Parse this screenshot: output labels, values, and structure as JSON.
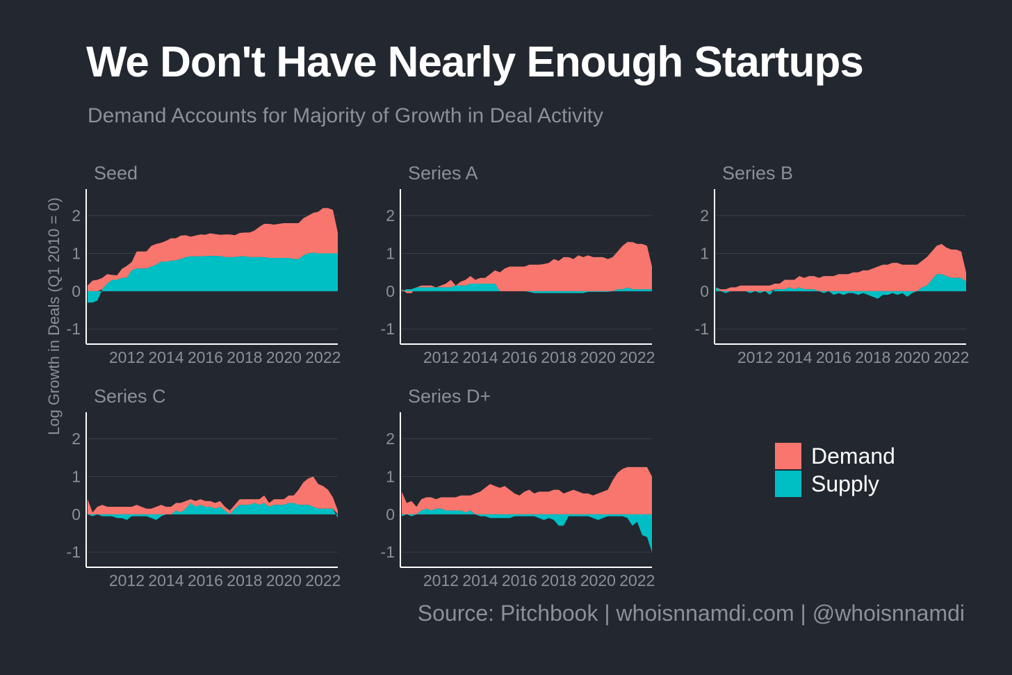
{
  "title": "We Don't Have Nearly Enough Startups",
  "subtitle": "Demand Accounts for Majority of Growth in Deal Activity",
  "y_axis_label": "Log Growth in Deals (Q1 2010 = 0)",
  "source": "Source: Pitchbook | whoisnnamdi.com | @whoisnnamdi",
  "colors": {
    "background": "#23272f",
    "demand": "#f8766d",
    "supply": "#00bfc4",
    "grid": "#3b3f47",
    "axis": "#ffffff",
    "muted": "#8c9097"
  },
  "legend": [
    {
      "name": "Demand",
      "color": "#f8766d"
    },
    {
      "name": "Supply",
      "color": "#00bfc4"
    }
  ],
  "chart_data": [
    {
      "type": "area",
      "title": "Seed",
      "x_ticks": [
        "2012",
        "2014",
        "2016",
        "2018",
        "2020",
        "2022"
      ],
      "y_ticks": [
        "2",
        "1",
        "0",
        "-1"
      ],
      "xlim": [
        2010,
        2022.75
      ],
      "ylim": [
        -1.4,
        2.7
      ],
      "x": [
        2010.0,
        2010.25,
        2010.5,
        2010.75,
        2011.0,
        2011.25,
        2011.5,
        2011.75,
        2012.0,
        2012.25,
        2012.5,
        2012.75,
        2013.0,
        2013.25,
        2013.5,
        2013.75,
        2014.0,
        2014.25,
        2014.5,
        2014.75,
        2015.0,
        2015.25,
        2015.5,
        2015.75,
        2016.0,
        2016.25,
        2016.5,
        2016.75,
        2017.0,
        2017.25,
        2017.5,
        2017.75,
        2018.0,
        2018.25,
        2018.5,
        2018.75,
        2019.0,
        2019.25,
        2019.5,
        2019.75,
        2020.0,
        2020.25,
        2020.5,
        2020.75,
        2021.0,
        2021.25,
        2021.5,
        2021.75,
        2022.0,
        2022.25,
        2022.5,
        2022.75
      ],
      "series": [
        {
          "name": "Demand",
          "values": [
            0.15,
            0.28,
            0.3,
            0.3,
            0.25,
            0.13,
            0.12,
            0.24,
            0.32,
            0.22,
            0.45,
            0.45,
            0.45,
            0.55,
            0.55,
            0.5,
            0.55,
            0.6,
            0.58,
            0.62,
            0.58,
            0.52,
            0.55,
            0.58,
            0.56,
            0.6,
            0.58,
            0.56,
            0.6,
            0.6,
            0.58,
            0.62,
            0.63,
            0.65,
            0.7,
            0.8,
            0.88,
            0.9,
            0.88,
            0.9,
            0.92,
            0.92,
            0.95,
            0.95,
            0.98,
            1.0,
            1.05,
            1.1,
            1.2,
            1.2,
            1.15,
            0.55
          ]
        },
        {
          "name": "Supply",
          "values": [
            -0.3,
            -0.3,
            -0.25,
            0.05,
            0.2,
            0.3,
            0.3,
            0.35,
            0.35,
            0.55,
            0.6,
            0.6,
            0.6,
            0.65,
            0.7,
            0.78,
            0.78,
            0.8,
            0.82,
            0.85,
            0.9,
            0.92,
            0.92,
            0.92,
            0.93,
            0.93,
            0.93,
            0.93,
            0.9,
            0.9,
            0.9,
            0.92,
            0.92,
            0.9,
            0.9,
            0.9,
            0.9,
            0.88,
            0.88,
            0.88,
            0.88,
            0.88,
            0.85,
            0.85,
            0.95,
            1.0,
            1.02,
            1.0,
            1.0,
            1.0,
            1.0,
            1.0
          ]
        }
      ]
    },
    {
      "type": "area",
      "title": "Series A",
      "x_ticks": [
        "2012",
        "2014",
        "2016",
        "2018",
        "2020",
        "2022"
      ],
      "y_ticks": [
        "2",
        "1",
        "0",
        "-1"
      ],
      "xlim": [
        2010,
        2022.75
      ],
      "ylim": [
        -1.4,
        2.7
      ],
      "x": [
        2010.0,
        2010.25,
        2010.5,
        2010.75,
        2011.0,
        2011.25,
        2011.5,
        2011.75,
        2012.0,
        2012.25,
        2012.5,
        2012.75,
        2013.0,
        2013.25,
        2013.5,
        2013.75,
        2014.0,
        2014.25,
        2014.5,
        2014.75,
        2015.0,
        2015.25,
        2015.5,
        2015.75,
        2016.0,
        2016.25,
        2016.5,
        2016.75,
        2017.0,
        2017.25,
        2017.5,
        2017.75,
        2018.0,
        2018.25,
        2018.5,
        2018.75,
        2019.0,
        2019.25,
        2019.5,
        2019.75,
        2020.0,
        2020.25,
        2020.5,
        2020.75,
        2021.0,
        2021.25,
        2021.5,
        2021.75,
        2022.0,
        2022.25,
        2022.5,
        2022.75
      ],
      "series": [
        {
          "name": "Demand",
          "values": [
            0.05,
            -0.1,
            -0.1,
            0.0,
            0.05,
            0.05,
            0.05,
            0.0,
            0.05,
            0.1,
            0.2,
            0.0,
            0.1,
            0.15,
            0.2,
            0.1,
            0.15,
            0.15,
            0.25,
            0.35,
            0.5,
            0.6,
            0.65,
            0.65,
            0.65,
            0.65,
            0.7,
            0.7,
            0.7,
            0.72,
            0.75,
            0.85,
            0.8,
            0.9,
            0.9,
            0.85,
            0.95,
            0.9,
            0.95,
            0.9,
            0.9,
            0.9,
            0.85,
            0.9,
            1.0,
            1.15,
            1.2,
            1.25,
            1.2,
            1.2,
            1.15,
            0.6
          ]
        },
        {
          "name": "Supply",
          "values": [
            0.0,
            0.05,
            0.05,
            0.1,
            0.1,
            0.1,
            0.1,
            0.1,
            0.1,
            0.1,
            0.1,
            0.15,
            0.15,
            0.15,
            0.2,
            0.2,
            0.2,
            0.2,
            0.2,
            0.2,
            0.0,
            0.0,
            0.0,
            0.0,
            0.0,
            0.0,
            -0.02,
            -0.05,
            -0.05,
            -0.05,
            -0.05,
            -0.05,
            -0.05,
            -0.05,
            -0.05,
            -0.05,
            -0.05,
            -0.05,
            -0.02,
            -0.02,
            -0.02,
            -0.02,
            -0.02,
            0.0,
            0.05,
            0.05,
            0.1,
            0.05,
            0.05,
            0.05,
            0.05,
            0.05
          ]
        }
      ]
    },
    {
      "type": "area",
      "title": "Series B",
      "x_ticks": [
        "2012",
        "2014",
        "2016",
        "2018",
        "2020",
        "2022"
      ],
      "y_ticks": [
        "2",
        "1",
        "0",
        "-1"
      ],
      "xlim": [
        2010,
        2022.75
      ],
      "ylim": [
        -1.4,
        2.7
      ],
      "x": [
        2010.0,
        2010.25,
        2010.5,
        2010.75,
        2011.0,
        2011.25,
        2011.5,
        2011.75,
        2012.0,
        2012.25,
        2012.5,
        2012.75,
        2013.0,
        2013.25,
        2013.5,
        2013.75,
        2014.0,
        2014.25,
        2014.5,
        2014.75,
        2015.0,
        2015.25,
        2015.5,
        2015.75,
        2016.0,
        2016.25,
        2016.5,
        2016.75,
        2017.0,
        2017.25,
        2017.5,
        2017.75,
        2018.0,
        2018.25,
        2018.5,
        2018.75,
        2019.0,
        2019.25,
        2019.5,
        2019.75,
        2020.0,
        2020.25,
        2020.5,
        2020.75,
        2021.0,
        2021.25,
        2021.5,
        2021.75,
        2022.0,
        2022.25,
        2022.5,
        2022.75
      ],
      "series": [
        {
          "name": "Demand",
          "values": [
            0.0,
            0.05,
            0.05,
            0.1,
            0.1,
            0.15,
            0.15,
            0.15,
            0.15,
            0.15,
            0.15,
            0.15,
            0.15,
            0.15,
            0.25,
            0.2,
            0.25,
            0.3,
            0.3,
            0.35,
            0.35,
            0.35,
            0.4,
            0.4,
            0.4,
            0.45,
            0.45,
            0.45,
            0.5,
            0.5,
            0.55,
            0.55,
            0.6,
            0.65,
            0.7,
            0.7,
            0.75,
            0.75,
            0.7,
            0.7,
            0.7,
            0.7,
            0.7,
            0.75,
            0.75,
            0.75,
            0.8,
            0.75,
            0.75,
            0.75,
            0.7,
            0.25
          ]
        },
        {
          "name": "Supply",
          "values": [
            0.1,
            0.0,
            -0.05,
            0.0,
            0.0,
            0.0,
            0.0,
            -0.05,
            0.0,
            -0.05,
            0.0,
            -0.1,
            0.05,
            0.05,
            0.05,
            0.1,
            0.05,
            0.1,
            0.05,
            0.05,
            0.05,
            0.0,
            -0.05,
            0.0,
            -0.1,
            -0.05,
            -0.1,
            -0.05,
            -0.05,
            -0.1,
            -0.05,
            -0.1,
            -0.15,
            -0.2,
            -0.1,
            -0.1,
            -0.05,
            -0.1,
            -0.05,
            -0.15,
            -0.05,
            0.0,
            0.1,
            0.15,
            0.3,
            0.45,
            0.45,
            0.4,
            0.35,
            0.35,
            0.35,
            0.25
          ]
        }
      ]
    },
    {
      "type": "area",
      "title": "Series C",
      "x_ticks": [
        "2012",
        "2014",
        "2016",
        "2018",
        "2020",
        "2022"
      ],
      "y_ticks": [
        "2",
        "1",
        "0",
        "-1"
      ],
      "xlim": [
        2010,
        2022.75
      ],
      "ylim": [
        -1.4,
        2.7
      ],
      "x": [
        2010.0,
        2010.25,
        2010.5,
        2010.75,
        2011.0,
        2011.25,
        2011.5,
        2011.75,
        2012.0,
        2012.25,
        2012.5,
        2012.75,
        2013.0,
        2013.25,
        2013.5,
        2013.75,
        2014.0,
        2014.25,
        2014.5,
        2014.75,
        2015.0,
        2015.25,
        2015.5,
        2015.75,
        2016.0,
        2016.25,
        2016.5,
        2016.75,
        2017.0,
        2017.25,
        2017.5,
        2017.75,
        2018.0,
        2018.25,
        2018.5,
        2018.75,
        2019.0,
        2019.25,
        2019.5,
        2019.75,
        2020.0,
        2020.25,
        2020.5,
        2020.75,
        2021.0,
        2021.25,
        2021.5,
        2021.75,
        2022.0,
        2022.25,
        2022.5,
        2022.75
      ],
      "series": [
        {
          "name": "Demand",
          "values": [
            0.4,
            0.05,
            0.2,
            0.25,
            0.2,
            0.2,
            0.2,
            0.2,
            0.2,
            0.2,
            0.25,
            0.2,
            0.15,
            0.15,
            0.2,
            0.25,
            0.2,
            0.2,
            0.2,
            0.25,
            0.2,
            0.1,
            0.15,
            0.15,
            0.15,
            0.15,
            0.15,
            0.15,
            0.1,
            0.1,
            0.1,
            0.15,
            0.15,
            0.15,
            0.1,
            0.15,
            0.2,
            0.1,
            0.15,
            0.15,
            0.15,
            0.2,
            0.2,
            0.4,
            0.6,
            0.7,
            0.8,
            0.65,
            0.6,
            0.5,
            0.3,
            0.1
          ]
        },
        {
          "name": "Supply",
          "values": [
            0.0,
            -0.05,
            0.0,
            -0.05,
            -0.05,
            -0.05,
            -0.1,
            -0.1,
            -0.15,
            -0.05,
            -0.05,
            -0.05,
            -0.05,
            -0.1,
            -0.15,
            -0.05,
            0.0,
            0.0,
            0.1,
            0.05,
            0.15,
            0.3,
            0.2,
            0.25,
            0.2,
            0.2,
            0.15,
            0.2,
            0.1,
            0.0,
            0.15,
            0.25,
            0.25,
            0.25,
            0.3,
            0.25,
            0.3,
            0.2,
            0.25,
            0.25,
            0.25,
            0.3,
            0.3,
            0.25,
            0.25,
            0.25,
            0.2,
            0.15,
            0.15,
            0.15,
            0.15,
            -0.1
          ]
        }
      ]
    },
    {
      "type": "area",
      "title": "Series D+",
      "x_ticks": [
        "2012",
        "2014",
        "2016",
        "2018",
        "2020",
        "2022"
      ],
      "y_ticks": [
        "2",
        "1",
        "0",
        "-1"
      ],
      "xlim": [
        2010,
        2022.75
      ],
      "ylim": [
        -1.4,
        2.7
      ],
      "x": [
        2010.0,
        2010.25,
        2010.5,
        2010.75,
        2011.0,
        2011.25,
        2011.5,
        2011.75,
        2012.0,
        2012.25,
        2012.5,
        2012.75,
        2013.0,
        2013.25,
        2013.5,
        2013.75,
        2014.0,
        2014.25,
        2014.5,
        2014.75,
        2015.0,
        2015.25,
        2015.5,
        2015.75,
        2016.0,
        2016.25,
        2016.5,
        2016.75,
        2017.0,
        2017.25,
        2017.5,
        2017.75,
        2018.0,
        2018.25,
        2018.5,
        2018.75,
        2019.0,
        2019.25,
        2019.5,
        2019.75,
        2020.0,
        2020.25,
        2020.5,
        2020.75,
        2021.0,
        2021.25,
        2021.5,
        2021.75,
        2022.0,
        2022.25,
        2022.5,
        2022.75
      ],
      "series": [
        {
          "name": "Demand",
          "values": [
            0.6,
            0.3,
            0.35,
            0.2,
            0.3,
            0.3,
            0.35,
            0.25,
            0.3,
            0.35,
            0.35,
            0.35,
            0.4,
            0.45,
            0.4,
            0.55,
            0.6,
            0.7,
            0.8,
            0.75,
            0.7,
            0.75,
            0.65,
            0.55,
            0.5,
            0.6,
            0.65,
            0.55,
            0.6,
            0.6,
            0.6,
            0.65,
            0.65,
            0.55,
            0.6,
            0.65,
            0.6,
            0.55,
            0.55,
            0.5,
            0.55,
            0.6,
            0.65,
            0.9,
            1.1,
            1.2,
            1.25,
            1.25,
            1.25,
            1.25,
            1.25,
            1.0
          ]
        },
        {
          "name": "Supply",
          "values": [
            -0.05,
            0.0,
            -0.05,
            0.0,
            0.1,
            0.15,
            0.1,
            0.15,
            0.15,
            0.1,
            0.1,
            0.1,
            0.1,
            0.05,
            0.1,
            0.0,
            -0.05,
            -0.05,
            -0.1,
            -0.1,
            -0.1,
            -0.1,
            -0.1,
            -0.05,
            -0.05,
            -0.05,
            -0.05,
            -0.05,
            -0.1,
            -0.15,
            -0.1,
            -0.15,
            -0.3,
            -0.3,
            -0.05,
            -0.05,
            -0.05,
            -0.05,
            -0.05,
            -0.1,
            -0.15,
            -0.1,
            -0.05,
            -0.05,
            -0.05,
            -0.05,
            -0.1,
            -0.3,
            -0.2,
            -0.55,
            -0.6,
            -1.0
          ]
        }
      ]
    }
  ]
}
